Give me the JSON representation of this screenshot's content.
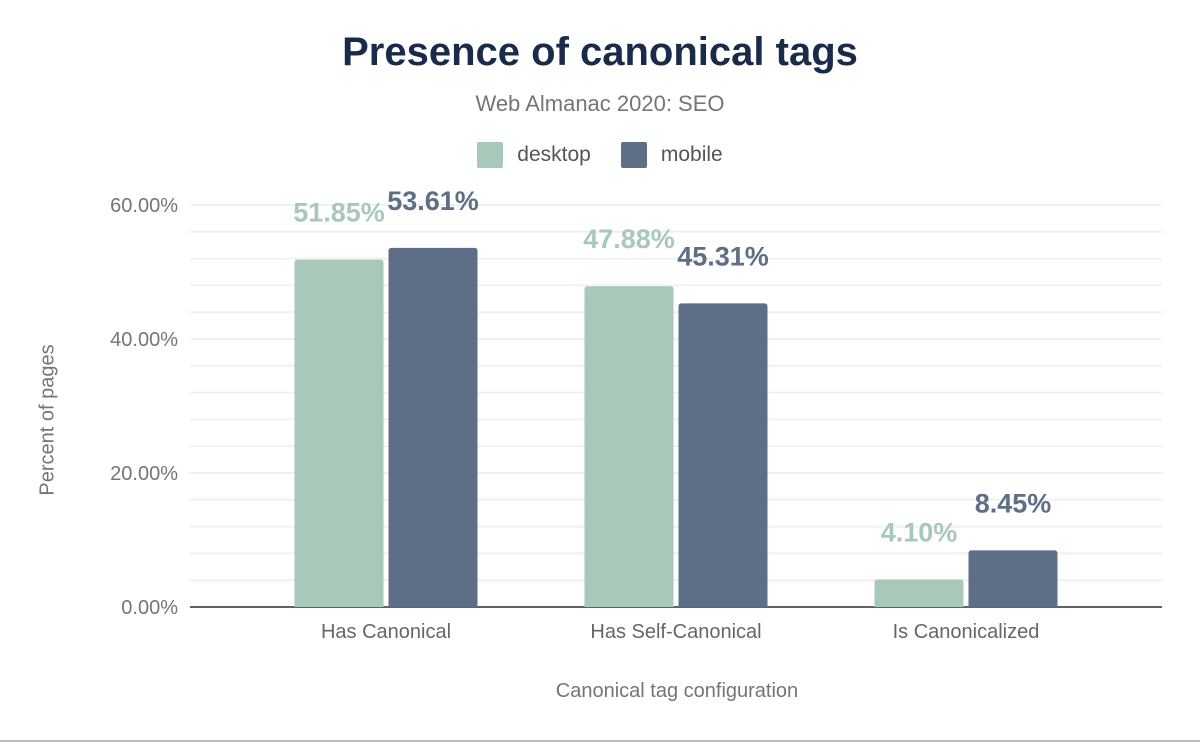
{
  "chart_data": {
    "type": "bar",
    "title": "Presence of canonical tags",
    "subtitle": "Web Almanac 2020: SEO",
    "xlabel": "Canonical tag configuration",
    "ylabel": "Percent of pages",
    "categories": [
      "Has Canonical",
      "Has Self-Canonical",
      "Is Canonicalized"
    ],
    "series": [
      {
        "name": "desktop",
        "values": [
          51.85,
          47.88,
          4.1
        ],
        "labels": [
          "51.85%",
          "47.88%",
          "4.10%"
        ],
        "color": "#a8c8b9"
      },
      {
        "name": "mobile",
        "values": [
          53.61,
          45.31,
          8.45
        ],
        "labels": [
          "53.61%",
          "45.31%",
          "8.45%"
        ],
        "color": "#5f6e87"
      }
    ],
    "ylim": [
      0,
      60
    ],
    "yticks": [
      0,
      20,
      40,
      60
    ],
    "ytick_labels": [
      "0.00%",
      "20.00%",
      "40.00%",
      "60.00%"
    ],
    "grid": true,
    "legend_position": "top"
  }
}
